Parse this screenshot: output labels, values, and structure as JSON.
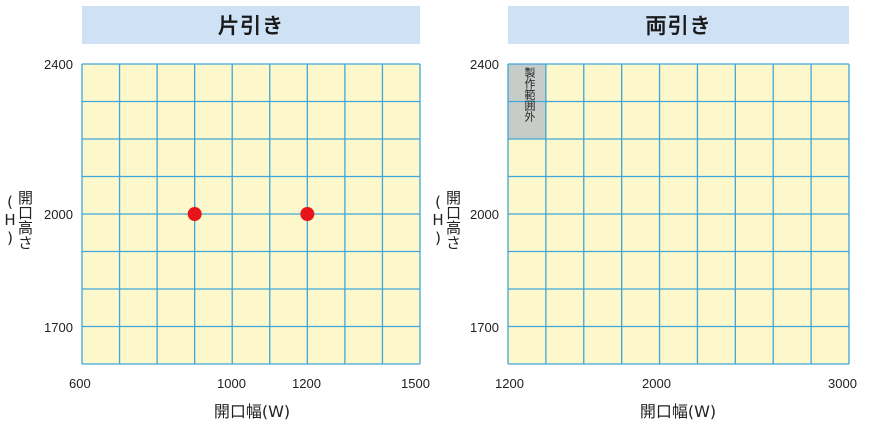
{
  "chart_data": [
    {
      "type": "scatter",
      "title": "片引き",
      "xlabel": "開口幅(W)",
      "ylabel": "開口高さ(H)",
      "x_ticks": [
        "600",
        "1000",
        "1200",
        "1500"
      ],
      "y_ticks": [
        "2400",
        "2000",
        "1700"
      ],
      "xlim": [
        600,
        1500
      ],
      "ylim": [
        1600,
        2400
      ],
      "grid": true,
      "points": [
        {
          "x": 900,
          "y": 2000
        },
        {
          "x": 1200,
          "y": 2000
        }
      ],
      "point_color": "#e8141b"
    },
    {
      "type": "scatter",
      "title": "両引き",
      "xlabel": "開口幅(W)",
      "ylabel": "開口高さ(H)",
      "x_ticks": [
        "1200",
        "2000",
        "3000"
      ],
      "y_ticks": [
        "2400",
        "2000",
        "1700"
      ],
      "xlim": [
        1200,
        3000
      ],
      "ylim": [
        1600,
        2400
      ],
      "grid": true,
      "points": [],
      "out_of_range_label": "製作範囲外",
      "out_of_range_color": "#c8ccc9"
    }
  ],
  "colors": {
    "plot_fill": "#fdf8cc",
    "grid_line": "#3ea6d8",
    "header_fill": "#cfe2f5"
  }
}
